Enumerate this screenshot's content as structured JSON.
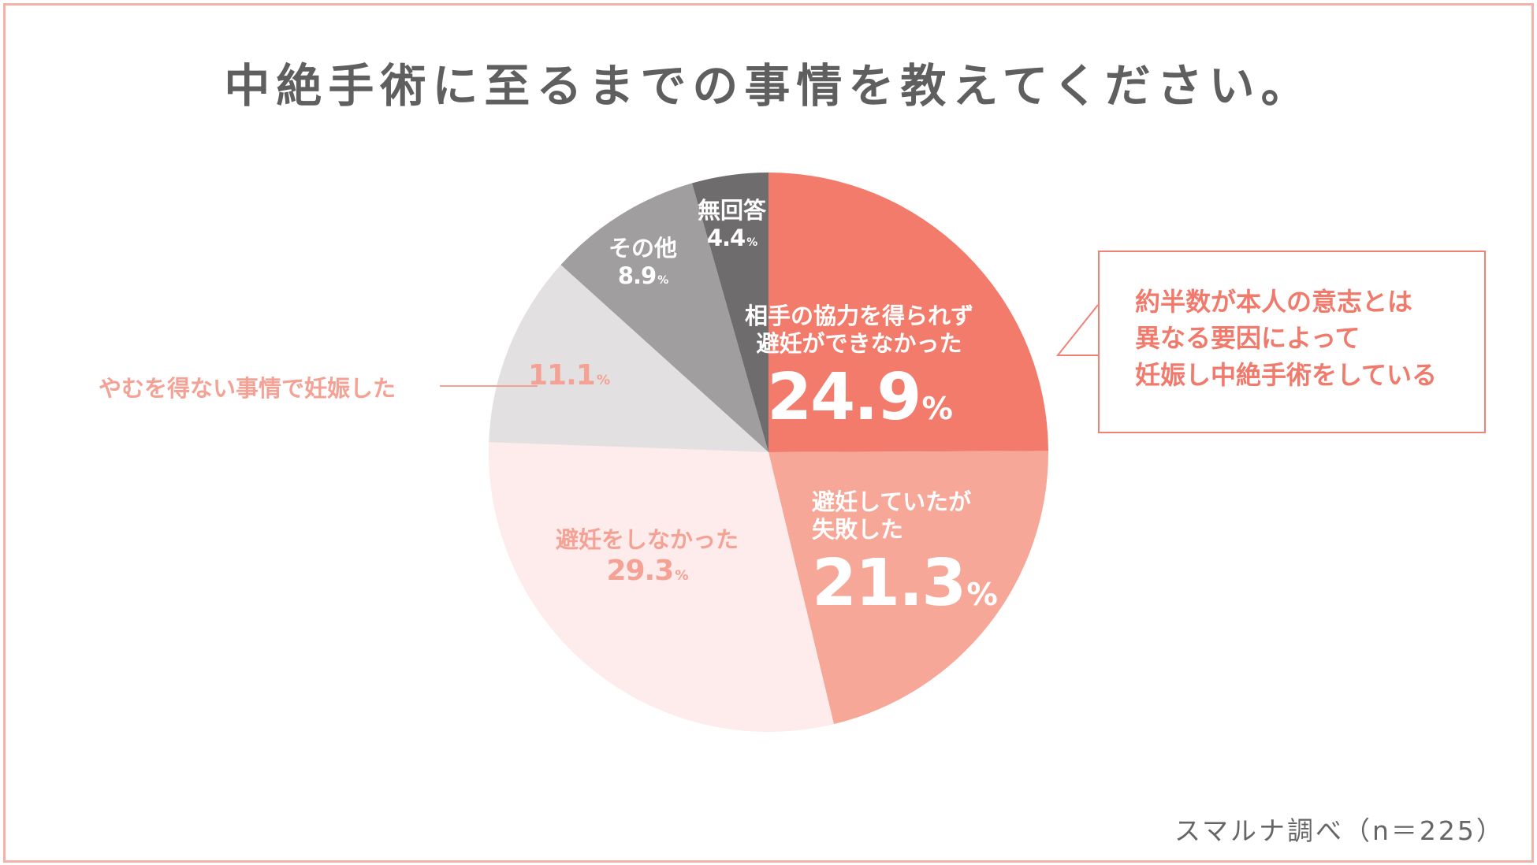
{
  "chart_data": {
    "type": "pie",
    "title": "中絶手術に至るまでの事情を教えてください。",
    "slices": [
      {
        "label": "相手の協力を得られず避妊ができなかった",
        "label_lines": [
          "相手の協力を得られず",
          "避妊ができなかった"
        ],
        "value": 24.9,
        "color": "#f37b6b"
      },
      {
        "label": "避妊していたが失敗した",
        "label_lines": [
          "避妊していたが",
          "失敗した"
        ],
        "value": 21.3,
        "color": "#f7a798"
      },
      {
        "label": "避妊をしなかった",
        "label_lines": [
          "避妊をしなかった"
        ],
        "value": 29.3,
        "color": "#fdeceb"
      },
      {
        "label": "やむを得ない事情で妊娠した",
        "label_lines": [],
        "value": 11.1,
        "color": "#e2e0e1"
      },
      {
        "label": "その他",
        "label_lines": [
          "その他"
        ],
        "value": 8.9,
        "color": "#a09e9f"
      },
      {
        "label": "無回答",
        "label_lines": [
          "無回答"
        ],
        "value": 4.4,
        "color": "#6e6c6d"
      }
    ],
    "unit": "%",
    "leader_label": "やむを得ない事情で妊娠した",
    "callout_lines": [
      "約半数が本人の意志とは",
      "異なる要因によって",
      "妊娠し中絶手術をしている"
    ],
    "source_note": "スマルナ調べ（n＝225）"
  },
  "colors": {
    "frame": "#f4b1a8",
    "title": "#5f5f5f",
    "callout": "#f07a6c",
    "leader": "#f3a295"
  }
}
